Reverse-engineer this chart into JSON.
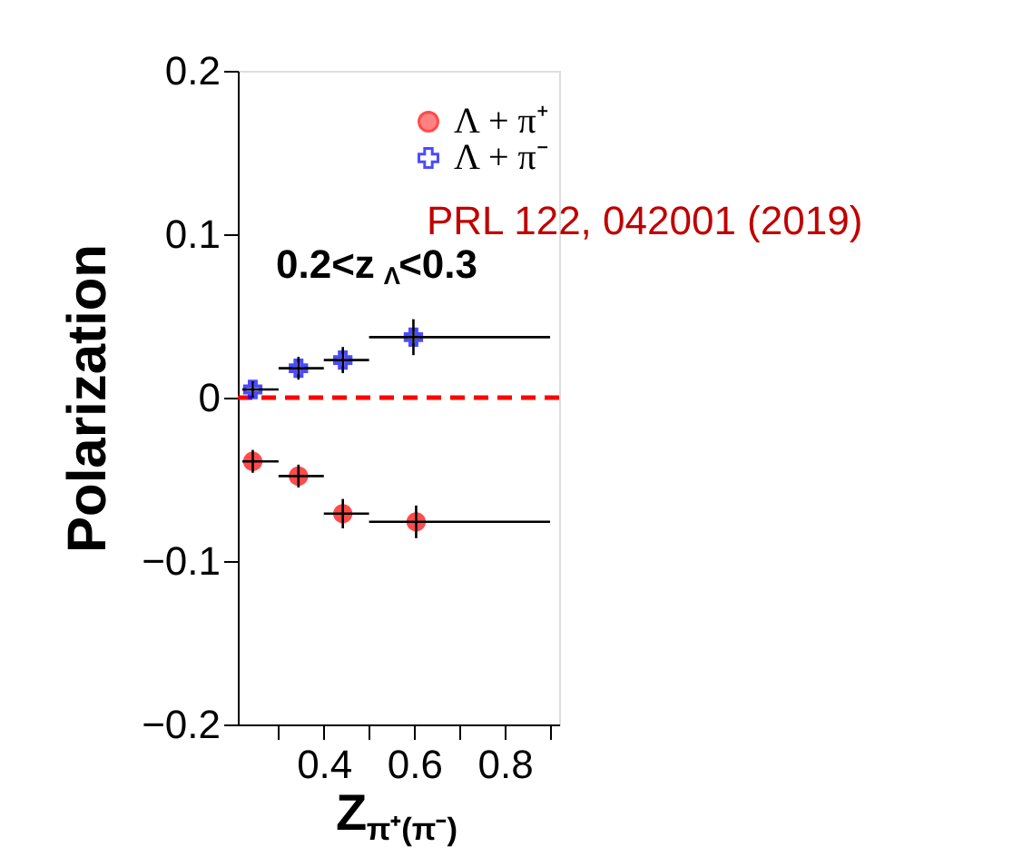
{
  "chart_data": {
    "type": "scatter",
    "xlabel": "Z$_{π⁺(π⁻)}$",
    "ylabel": "Polarization",
    "annotations": [
      {
        "text": "0.2<z$_{Λ}$<0.3"
      },
      {
        "text": "PRL 122, 042001 (2019)"
      }
    ],
    "series": [
      {
        "name": "Λ + π⁺",
        "color": "#ff0000",
        "marker": "circle",
        "x": [
          0.243,
          0.344,
          0.442,
          0.604
        ],
        "values": [
          -0.039,
          -0.048,
          -0.071,
          -0.076
        ],
        "errors": [
          0.007,
          0.007,
          0.009,
          0.01
        ],
        "xerrors": [
          [
            0.22,
            0.3
          ],
          [
            0.3,
            0.4
          ],
          [
            0.4,
            0.5
          ],
          [
            0.5,
            0.9
          ]
        ]
      },
      {
        "name": "Λ + π⁻",
        "color": "#0000ff",
        "marker": "cross",
        "x": [
          0.243,
          0.344,
          0.442,
          0.598
        ],
        "values": [
          0.005,
          0.018,
          0.023,
          0.037
        ],
        "errors": [
          0.005,
          0.007,
          0.008,
          0.011
        ],
        "xerrors": [
          [
            0.22,
            0.3
          ],
          [
            0.3,
            0.4
          ],
          [
            0.4,
            0.5
          ],
          [
            0.5,
            0.9
          ]
        ]
      }
    ],
    "xlim": [
      0.21,
      0.92
    ],
    "ylim": [
      -0.2,
      0.2
    ],
    "xticks": [
      {
        "value": 0.3,
        "label": null
      },
      {
        "value": 0.4,
        "label": "0.4"
      },
      {
        "value": 0.5,
        "label": null
      },
      {
        "value": 0.6,
        "label": "0.6"
      },
      {
        "value": 0.7,
        "label": null
      },
      {
        "value": 0.8,
        "label": "0.8"
      },
      {
        "value": 0.9,
        "label": null
      }
    ],
    "yticks": [
      {
        "value": -0.2,
        "label": "−0.2"
      },
      {
        "value": -0.1,
        "label": "−0.1"
      },
      {
        "value": 0,
        "label": "0"
      },
      {
        "value": 0.1,
        "label": "0.1"
      },
      {
        "value": 0.2,
        "label": "0.2"
      }
    ],
    "ref_lines": [
      {
        "axis": "y",
        "value": 0,
        "color": "#ff0000",
        "line_style": "dashed"
      }
    ],
    "legend": "top right",
    "grid": false
  }
}
